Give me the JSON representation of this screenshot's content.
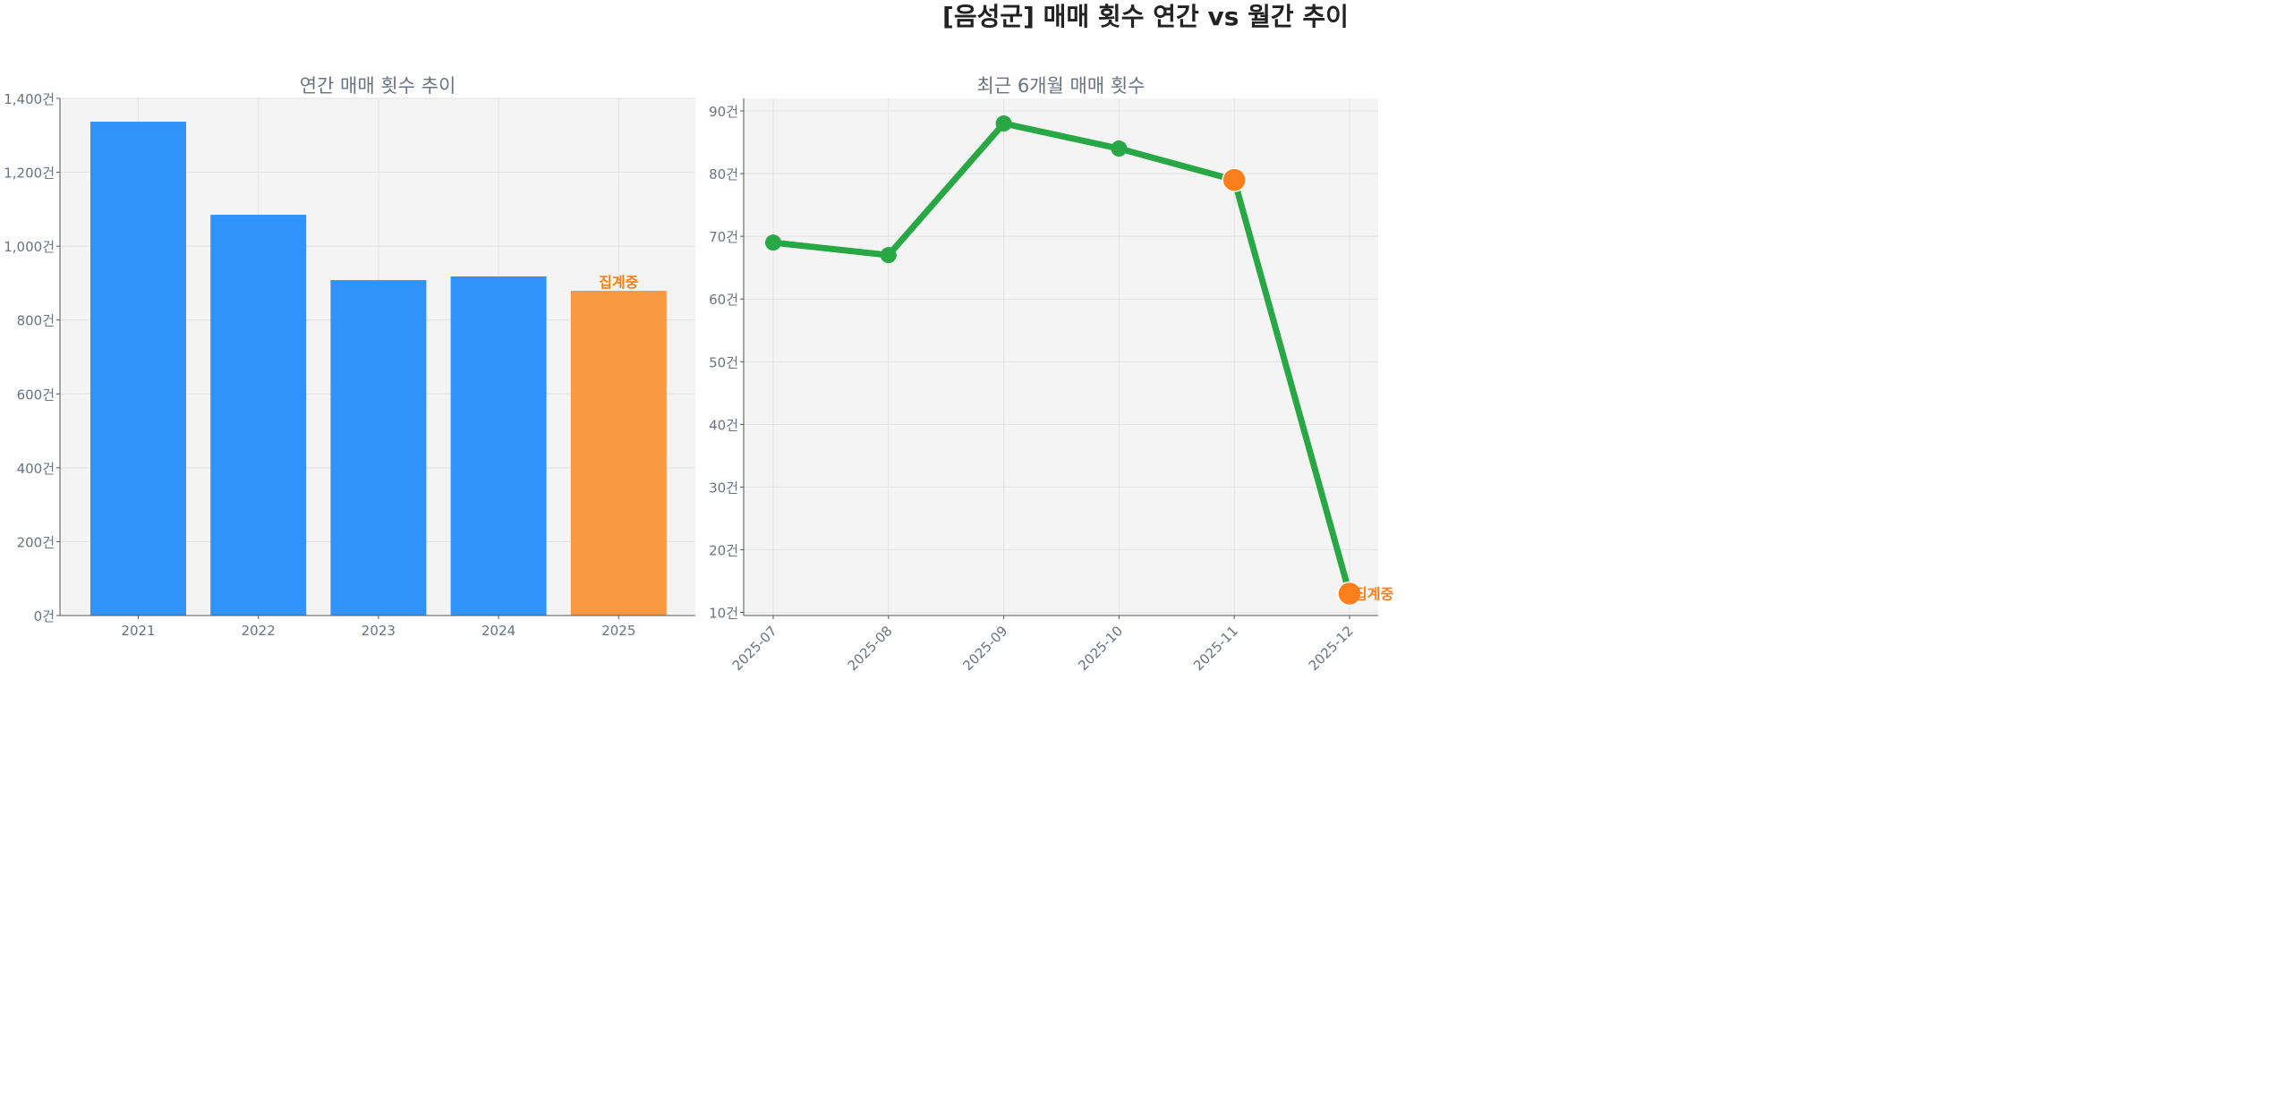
{
  "title": "[음성군] 매매 횟수 연간 vs 월간 추이",
  "chart_data": [
    {
      "type": "bar",
      "title": "연간 매매 횟수 추이",
      "categories": [
        "2021",
        "2022",
        "2023",
        "2024",
        "2025"
      ],
      "values": [
        1337,
        1085,
        908,
        918,
        879
      ],
      "colors": [
        "#3093fc",
        "#3093fc",
        "#3093fc",
        "#3093fc",
        "#f99840"
      ],
      "ylim": [
        0,
        1400
      ],
      "yticks": [
        0,
        200,
        400,
        600,
        800,
        1000,
        1200,
        1400
      ],
      "ytick_labels": [
        "0건",
        "200건",
        "400건",
        "600건",
        "800건",
        "1,000건",
        "1,200건",
        "1,400건"
      ],
      "annotation": {
        "category": "2025",
        "text": "집계중",
        "color": "#f97f1a"
      },
      "grid": true
    },
    {
      "type": "line",
      "title": "최근 6개월 매매 횟수",
      "categories": [
        "2025-07",
        "2025-08",
        "2025-09",
        "2025-10",
        "2025-11",
        "2025-12"
      ],
      "values": [
        69,
        67,
        88,
        84,
        79,
        13
      ],
      "line_color": "#28a745",
      "highlight_color": "#fd7f1c",
      "highlight_indices": [
        4,
        5
      ],
      "ylim": [
        9.5,
        92
      ],
      "yticks": [
        10,
        20,
        30,
        40,
        50,
        60,
        70,
        80,
        90
      ],
      "ytick_labels": [
        "10건",
        "20건",
        "30건",
        "40건",
        "50건",
        "60건",
        "70건",
        "80건",
        "90건"
      ],
      "annotation": {
        "category": "2025-12",
        "text": "집계중",
        "color": "#f97f1a"
      },
      "grid": true
    }
  ]
}
